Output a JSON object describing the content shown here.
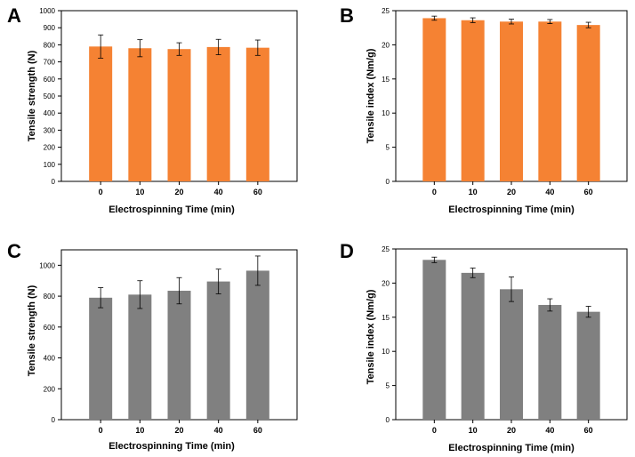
{
  "chart_data": [
    {
      "panel": "A",
      "type": "bar",
      "categories": [
        "0",
        "10",
        "20",
        "40",
        "60"
      ],
      "values": [
        790,
        780,
        775,
        787,
        783
      ],
      "errors": [
        68,
        50,
        37,
        45,
        45
      ],
      "xlabel": "Electrospinning Time (min)",
      "ylabel": "Tensile strength (N)",
      "ylim": [
        0,
        1000
      ],
      "yticks": [
        0,
        100,
        200,
        300,
        400,
        500,
        600,
        700,
        800,
        900,
        1000
      ],
      "color": "#f58233"
    },
    {
      "panel": "B",
      "type": "bar",
      "categories": [
        "0",
        "10",
        "20",
        "40",
        "60"
      ],
      "values": [
        23.9,
        23.6,
        23.4,
        23.4,
        22.9
      ],
      "errors": [
        0.3,
        0.35,
        0.35,
        0.3,
        0.4
      ],
      "xlabel": "Electrospinning Time (min)",
      "ylabel": "Tensile index (Nm/g)",
      "ylim": [
        0,
        25
      ],
      "yticks": [
        0,
        5,
        10,
        15,
        20,
        25
      ],
      "color": "#f58233"
    },
    {
      "panel": "C",
      "type": "bar",
      "categories": [
        "0",
        "10",
        "20",
        "40",
        "60"
      ],
      "values": [
        790,
        810,
        835,
        895,
        965
      ],
      "errors": [
        65,
        90,
        85,
        80,
        95
      ],
      "xlabel": "Electrospinning Time (min)",
      "ylabel": "Tensile strength (N)",
      "ylim": [
        0,
        1100
      ],
      "yticks": [
        0,
        200,
        400,
        600,
        800,
        1000
      ],
      "color": "#808080"
    },
    {
      "panel": "D",
      "type": "bar",
      "categories": [
        "0",
        "10",
        "20",
        "40",
        "60"
      ],
      "values": [
        23.4,
        21.5,
        19.1,
        16.8,
        15.8
      ],
      "errors": [
        0.4,
        0.7,
        1.8,
        0.9,
        0.8
      ],
      "xlabel": "Electrospinning Time (min)",
      "ylabel": "Tensile index (Nm/g)",
      "ylim": [
        0,
        25
      ],
      "yticks": [
        0,
        5,
        10,
        15,
        20,
        25
      ],
      "color": "#808080"
    }
  ]
}
